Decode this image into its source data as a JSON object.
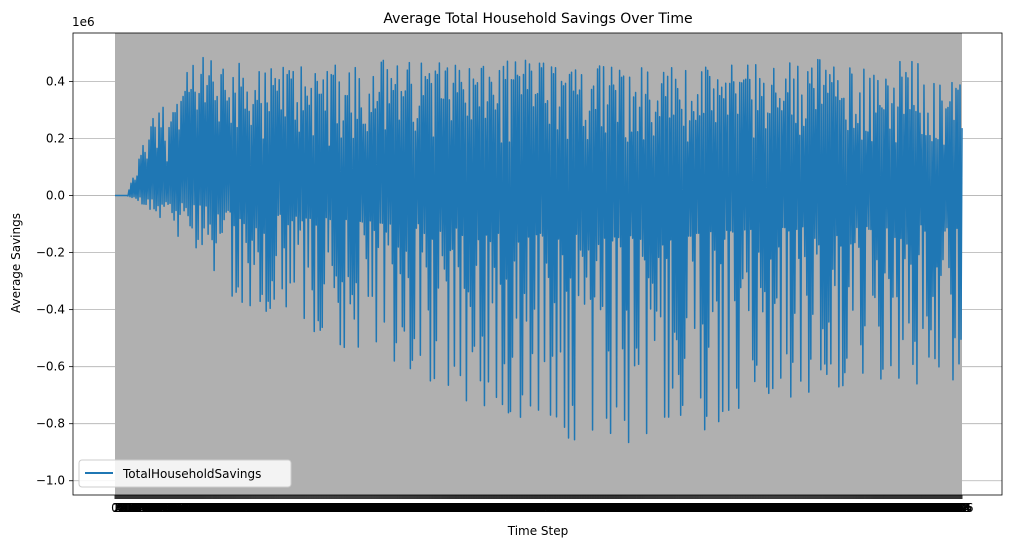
{
  "chart_data": {
    "type": "line",
    "title": "Average Total Household Savings Over Time",
    "xlabel": "Time Step",
    "ylabel": "Average Savings",
    "y_scale_label": "1e6",
    "y_multiplier": 1000000,
    "ylim": [
      -1.05,
      0.57
    ],
    "y_ticks": [
      0.4,
      0.2,
      0.0,
      -0.2,
      -0.4,
      -0.6,
      -0.8,
      -1.0
    ],
    "y_tick_labels": [
      "0.4",
      "0.2",
      "0.0",
      "−0.2",
      "−0.4",
      "−0.6",
      "−0.8",
      "−1.0"
    ],
    "grid": "y-only",
    "legend_position": "lower-left",
    "series": [
      {
        "name": "TotalHouseholdSavings",
        "color": "#1f77b4"
      }
    ],
    "band_color": "#b0b0b0",
    "envelope": {
      "x": [
        0,
        12,
        35,
        45,
        50,
        80,
        100,
        120,
        150,
        180,
        220,
        260,
        300,
        340,
        380,
        420,
        460,
        500,
        540,
        580,
        620,
        660,
        700,
        750,
        800,
        846
      ],
      "max": [
        0.0,
        0.0,
        0.26,
        0.34,
        0.3,
        0.48,
        0.49,
        0.47,
        0.44,
        0.47,
        0.46,
        0.49,
        0.47,
        0.48,
        0.47,
        0.48,
        0.46,
        0.47,
        0.46,
        0.45,
        0.47,
        0.48,
        0.49,
        0.45,
        0.5,
        0.4
      ],
      "min": [
        0.0,
        0.0,
        -0.05,
        -0.08,
        -0.12,
        -0.2,
        -0.28,
        -0.38,
        -0.42,
        -0.45,
        -0.52,
        -0.6,
        -0.65,
        -0.72,
        -0.78,
        -0.85,
        -0.9,
        -0.96,
        -0.9,
        -0.84,
        -0.78,
        -0.75,
        -0.72,
        -0.7,
        -0.67,
        -0.66
      ]
    },
    "n_points": 847
  }
}
